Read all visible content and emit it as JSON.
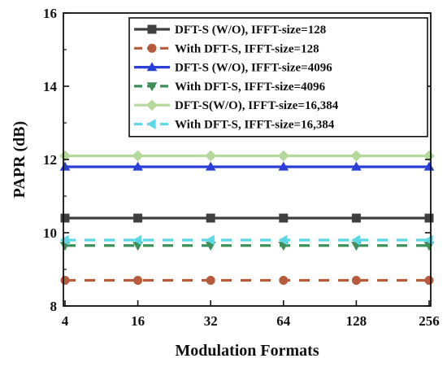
{
  "chart_data": {
    "type": "line",
    "title": "",
    "xlabel": "Modulation Formats",
    "ylabel": "PAPR (dB)",
    "categories": [
      "4",
      "16",
      "32",
      "64",
      "128",
      "256"
    ],
    "ylim": [
      8,
      16
    ],
    "yticks": [
      "8",
      "10",
      "12",
      "14",
      "16"
    ],
    "grid": false,
    "legend_position": "top-right",
    "series": [
      {
        "name": "DFT-S (W/O), IFFT-size=128",
        "values": [
          10.4,
          10.4,
          10.4,
          10.4,
          10.4,
          10.4
        ],
        "color": "#404040",
        "marker": "square",
        "dash": "solid"
      },
      {
        "name": "With DFT-S, IFFT-size=128",
        "values": [
          8.7,
          8.7,
          8.7,
          8.7,
          8.7,
          8.7
        ],
        "color": "#b85a3c",
        "marker": "circle",
        "dash": "dashed"
      },
      {
        "name": "DFT-S (W/O), IFFT-size=4096",
        "values": [
          11.8,
          11.8,
          11.8,
          11.8,
          11.8,
          11.8
        ],
        "color": "#2a3fd6",
        "marker": "triangle-up",
        "dash": "solid"
      },
      {
        "name": "With DFT-S, IFFT-size=4096",
        "values": [
          9.65,
          9.65,
          9.65,
          9.65,
          9.65,
          9.65
        ],
        "color": "#3f8f5a",
        "marker": "triangle-down",
        "dash": "dashed"
      },
      {
        "name": "DFT-S(W/O), IFFT-size=16,384",
        "values": [
          12.1,
          12.1,
          12.1,
          12.1,
          12.1,
          12.1
        ],
        "color": "#b4d99a",
        "marker": "diamond",
        "dash": "solid"
      },
      {
        "name": "With DFT-S, IFFT-size=16,384",
        "values": [
          9.8,
          9.8,
          9.8,
          9.8,
          9.8,
          9.8
        ],
        "color": "#5ad8e8",
        "marker": "triangle-left",
        "dash": "dashed"
      }
    ]
  }
}
